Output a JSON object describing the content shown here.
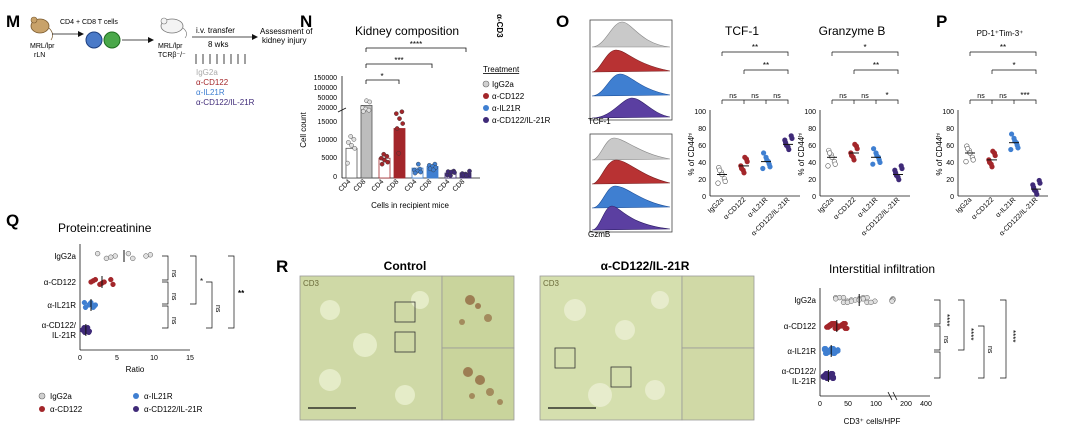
{
  "colors": {
    "igg2a": "#9a9a9a",
    "cd122": "#a3262a",
    "il21r": "#3f7fd1",
    "combo": "#3f2a78"
  },
  "panel_m": {
    "letter": "M",
    "cells": "CD4 + CD8 T cells",
    "donor": [
      "MRL/lpr",
      "rLN"
    ],
    "recipient": [
      "MRL/lpr",
      "TCRβ⁻/⁻"
    ],
    "transfer": [
      "i.v. transfer",
      "8 wks"
    ],
    "assessment": [
      "Assessment of",
      "kidney injury"
    ],
    "treatments": [
      "IgG2a",
      "α-CD122",
      "α-IL21R",
      "α-CD122/IL-21R"
    ]
  },
  "panel_n": {
    "letter": "N",
    "title": "Kidney composition",
    "ylabel": "Cell count",
    "xlabel": "Cells in recipient mice",
    "yticks_top": [
      "150000",
      "100000",
      "50000",
      "20000"
    ],
    "yticks_bottom": [
      "15000",
      "10000",
      "5000",
      "0"
    ],
    "xticks": [
      "CD4",
      "CD8",
      "CD4",
      "CD8",
      "CD4",
      "CD8",
      "CD4",
      "CD8"
    ],
    "sig": [
      "****",
      "***",
      "*"
    ],
    "legend_title": "Treatment",
    "legend": [
      "IgG2a",
      "α-CD122",
      "α-IL21R",
      "α-CD122/IL-21R"
    ],
    "clipped": "α-CD3"
  },
  "panel_o": {
    "letter": "O",
    "hist_labels": [
      "TCF-1",
      "GzmB"
    ],
    "titles": [
      "TCF-1",
      "Granzyme B"
    ],
    "ylabel": "% of CD44ʰⁱ",
    "yticks": [
      "100",
      "80",
      "60",
      "40",
      "20",
      "0"
    ],
    "xticks": [
      "IgG2a",
      "α-CD122",
      "α-IL21R",
      "α-CD122/IL-21R"
    ],
    "sig_tcf": [
      "**",
      "**",
      "ns",
      "ns",
      "ns"
    ],
    "sig_gzm": [
      "*",
      "**",
      "ns",
      "ns",
      "*"
    ]
  },
  "panel_p": {
    "letter": "P",
    "title": "PD-1⁺Tim-3⁺",
    "ylabel": "% of CD44ʰⁱ",
    "yticks": [
      "100",
      "80",
      "60",
      "40",
      "20",
      "0"
    ],
    "xticks": [
      "IgG2a",
      "α-CD122",
      "α-IL21R",
      "α-CD122/IL-21R"
    ],
    "sig": [
      "**",
      "*",
      "ns",
      "ns",
      "***"
    ]
  },
  "panel_q": {
    "letter": "Q",
    "title": "Protein:creatinine",
    "xlabel": "Ratio",
    "xticks": [
      "0",
      "5",
      "10",
      "15"
    ],
    "groups": [
      "IgG2a",
      "α-CD122",
      "α-IL21R",
      "α-CD122/"
    ],
    "group_line2": "IL-21R",
    "sig": [
      "ns",
      "ns",
      "ns",
      "*",
      "ns",
      "**"
    ],
    "legend": [
      "IgG2a",
      "α-IL21R",
      "α-CD122",
      "α-CD122/IL-21R"
    ]
  },
  "panel_r": {
    "letter": "R",
    "control": "Control",
    "treated": "α-CD122/IL-21R",
    "stain": "CD3",
    "chart_title": "Interstitial infiltration",
    "groups": [
      "IgG2a",
      "α-CD122",
      "α-IL21R",
      "α-CD122/"
    ],
    "group_line2": "IL-21R",
    "xticks": [
      "0",
      "50",
      "100",
      "200",
      "400"
    ],
    "xlabel": "CD3⁺ cells/HPF",
    "sig": [
      "****",
      "****",
      "****",
      "ns",
      "ns"
    ]
  },
  "chart_data": [
    {
      "type": "bar",
      "title": "Kidney composition",
      "categories": [
        "CD4",
        "CD8"
      ],
      "series": [
        {
          "name": "IgG2a",
          "values": [
            9000,
            45000
          ]
        },
        {
          "name": "α-CD122",
          "values": [
            6000,
            15000
          ]
        },
        {
          "name": "α-IL21R",
          "values": [
            3000,
            3500
          ]
        },
        {
          "name": "α-CD122/IL-21R",
          "values": [
            1500,
            1500
          ]
        }
      ],
      "ylabel": "Cell count"
    },
    {
      "type": "scatter",
      "title": "TCF-1",
      "categories": [
        "IgG2a",
        "α-CD122",
        "α-IL21R",
        "α-CD122/IL-21R"
      ],
      "values": [
        25,
        35,
        40,
        60
      ],
      "ylabel": "% of CD44ʰⁱ",
      "ylim": [
        0,
        100
      ]
    },
    {
      "type": "scatter",
      "title": "Granzyme B",
      "categories": [
        "IgG2a",
        "α-CD122",
        "α-IL21R",
        "α-CD122/IL-21R"
      ],
      "values": [
        45,
        50,
        45,
        25
      ],
      "ylabel": "% of CD44ʰⁱ",
      "ylim": [
        0,
        100
      ]
    },
    {
      "type": "scatter",
      "title": "PD-1⁺Tim-3⁺",
      "categories": [
        "IgG2a",
        "α-CD122",
        "α-IL21R",
        "α-CD122/IL-21R"
      ],
      "values": [
        50,
        42,
        62,
        8
      ],
      "ylabel": "% of CD44ʰⁱ",
      "ylim": [
        0,
        100
      ]
    },
    {
      "type": "scatter",
      "title": "Protein:creatinine",
      "categories": [
        "IgG2a",
        "α-CD122",
        "α-IL21R",
        "α-CD122/IL-21R"
      ],
      "values": [
        6,
        3,
        1.5,
        0.8
      ],
      "xlabel": "Ratio",
      "xlim": [
        0,
        15
      ]
    },
    {
      "type": "scatter",
      "title": "Interstitial infiltration",
      "categories": [
        "IgG2a",
        "α-CD122",
        "α-IL21R",
        "α-CD122/IL-21R"
      ],
      "values": [
        70,
        30,
        20,
        15
      ],
      "xlabel": "CD3⁺ cells/HPF"
    }
  ]
}
